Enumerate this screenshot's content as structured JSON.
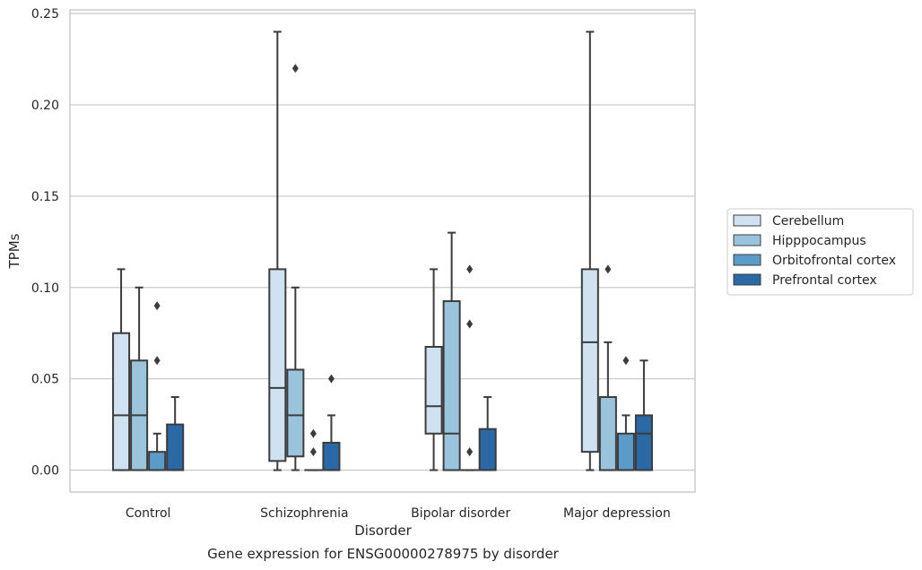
{
  "chart_data": {
    "type": "boxplot",
    "title": "Gene expression for ENSG00000278975 by disorder",
    "xlabel": "Disorder",
    "ylabel": "TPMs",
    "ylim": [
      -0.012,
      0.252
    ],
    "yticks": [
      0.0,
      0.05,
      0.1,
      0.15,
      0.2,
      0.25
    ],
    "ytick_labels": [
      "0.00",
      "0.05",
      "0.10",
      "0.15",
      "0.20",
      "0.25"
    ],
    "grid": "horizontal",
    "legend_position": "right",
    "categories": [
      "Control",
      "Schizophrenia",
      "Bipolar disorder",
      "Major depression"
    ],
    "series": [
      {
        "name": "Cerebellum",
        "color": "#d0e1f2",
        "boxes": [
          {
            "whislo": 0.0,
            "q1": 0.0,
            "med": 0.03,
            "q3": 0.075,
            "whishi": 0.11,
            "fliers": []
          },
          {
            "whislo": 0.0,
            "q1": 0.005,
            "med": 0.045,
            "q3": 0.11,
            "whishi": 0.24,
            "fliers": []
          },
          {
            "whislo": 0.0,
            "q1": 0.02,
            "med": 0.035,
            "q3": 0.0675,
            "whishi": 0.11,
            "fliers": []
          },
          {
            "whislo": 0.0,
            "q1": 0.01,
            "med": 0.07,
            "q3": 0.11,
            "whishi": 0.24,
            "fliers": []
          }
        ]
      },
      {
        "name": "Hipppocampus",
        "color": "#9ac4dc",
        "boxes": [
          {
            "whislo": 0.0,
            "q1": 0.0,
            "med": 0.03,
            "q3": 0.06,
            "whishi": 0.1,
            "fliers": []
          },
          {
            "whislo": 0.0,
            "q1": 0.0075,
            "med": 0.03,
            "q3": 0.055,
            "whishi": 0.1,
            "fliers": [
              0.22
            ]
          },
          {
            "whislo": 0.0,
            "q1": 0.0,
            "med": 0.02,
            "q3": 0.0925,
            "whishi": 0.13,
            "fliers": []
          },
          {
            "whislo": 0.0,
            "q1": 0.0,
            "med": 0.0,
            "q3": 0.04,
            "whishi": 0.07,
            "fliers": [
              0.11
            ]
          }
        ]
      },
      {
        "name": "Orbitofrontal cortex",
        "color": "#5a9bc9",
        "boxes": [
          {
            "whislo": 0.0,
            "q1": 0.0,
            "med": 0.0,
            "q3": 0.01,
            "whishi": 0.02,
            "fliers": [
              0.06,
              0.09
            ]
          },
          {
            "whislo": 0.0,
            "q1": 0.0,
            "med": 0.0,
            "q3": 0.0,
            "whishi": 0.0,
            "fliers": [
              0.01,
              0.02
            ]
          },
          {
            "whislo": 0.0,
            "q1": 0.0,
            "med": 0.0,
            "q3": 0.0,
            "whishi": 0.0,
            "fliers": [
              0.01,
              0.08,
              0.11
            ]
          },
          {
            "whislo": 0.0,
            "q1": 0.0,
            "med": 0.0,
            "q3": 0.02,
            "whishi": 0.03,
            "fliers": [
              0.06
            ]
          }
        ]
      },
      {
        "name": "Prefrontal cortex",
        "color": "#2a68a6",
        "boxes": [
          {
            "whislo": 0.0,
            "q1": 0.0,
            "med": 0.0,
            "q3": 0.025,
            "whishi": 0.04,
            "fliers": []
          },
          {
            "whislo": 0.0,
            "q1": 0.0,
            "med": 0.0,
            "q3": 0.015,
            "whishi": 0.03,
            "fliers": [
              0.05
            ]
          },
          {
            "whislo": 0.0,
            "q1": 0.0,
            "med": 0.0,
            "q3": 0.0225,
            "whishi": 0.04,
            "fliers": []
          },
          {
            "whislo": 0.0,
            "q1": 0.0,
            "med": 0.02,
            "q3": 0.03,
            "whishi": 0.06,
            "fliers": []
          }
        ]
      }
    ],
    "line_color": "#3c3c3c",
    "grid_color": "#cccccc",
    "frame_color": "#cccccc"
  }
}
